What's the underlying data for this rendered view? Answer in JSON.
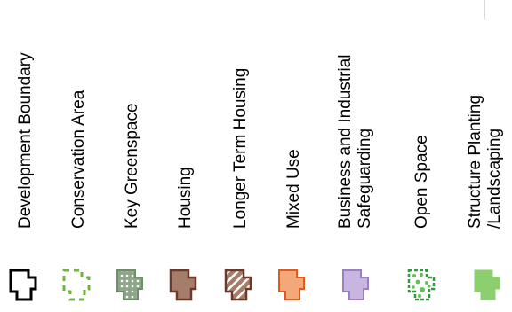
{
  "legend": {
    "items": [
      {
        "key": "development-boundary",
        "label": "Development Boundary",
        "symbol": "outline",
        "stroke": "#000000",
        "fill": "none"
      },
      {
        "key": "conservation-area",
        "label": "Conservation Area",
        "symbol": "dashed-outline",
        "stroke": "#6fb43f",
        "fill": "none"
      },
      {
        "key": "key-greenspace",
        "label": "Key Greenspace",
        "symbol": "dotted-fill",
        "stroke": "#6f8f6a",
        "fill": "#8fa58a",
        "dots": "#ffffff"
      },
      {
        "key": "housing",
        "label": "Housing",
        "symbol": "solid-fill",
        "stroke": "#6b3a2a",
        "fill": "#a67c6a"
      },
      {
        "key": "longer-term-housing",
        "label": "Longer Term Housing",
        "symbol": "hatched-fill",
        "stroke": "#6b3a2a",
        "fill": "#a67c6a",
        "hatch": "#ffffff"
      },
      {
        "key": "mixed-use",
        "label": "Mixed Use",
        "symbol": "solid-fill",
        "stroke": "#e05a1e",
        "fill": "#f3a87a"
      },
      {
        "key": "business-industrial",
        "label": "Business and Industrial\nSafeguarding",
        "symbol": "solid-fill",
        "stroke": "#9a7fc2",
        "fill": "#c9b6e0"
      },
      {
        "key": "open-space",
        "label": "Open Space",
        "symbol": "dotted-outline",
        "stroke": "#2e9a3a",
        "fill": "#ffffff",
        "dots": "#5fc35a"
      },
      {
        "key": "structure-planting",
        "label": "Structure Planting\n/Landscaping",
        "symbol": "solid-fill",
        "stroke": "#8bcf6e",
        "fill": "#8bcf6e"
      }
    ]
  }
}
